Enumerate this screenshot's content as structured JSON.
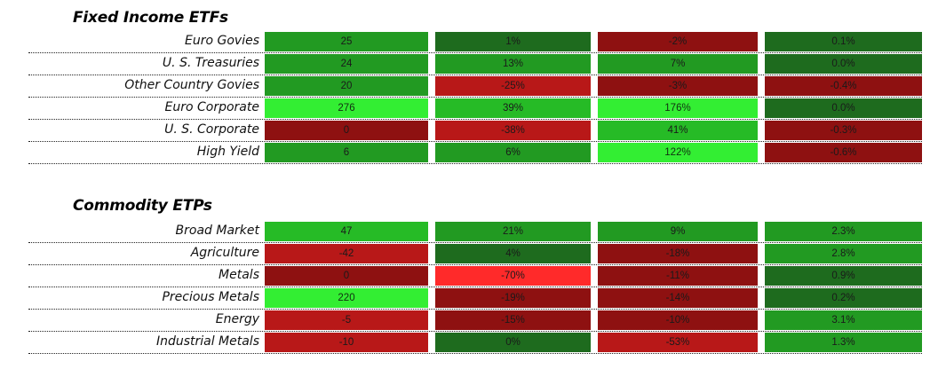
{
  "palette": {
    "dark_green": "#1e6b1e",
    "green": "#229a22",
    "mid_green": "#26bb26",
    "bright_green": "#33ee33",
    "dark_red": "#8e1111",
    "red": "#b81818",
    "bright_red": "#ff2a2a"
  },
  "sections": [
    {
      "title": "Fixed Income ETFs",
      "rows": [
        {
          "label": "Euro Govies",
          "cells": [
            {
              "value": "25",
              "color": "green"
            },
            {
              "value": "1%",
              "color": "dark_green"
            },
            {
              "value": "-2%",
              "color": "dark_red"
            },
            {
              "value": "0.1%",
              "color": "dark_green"
            }
          ]
        },
        {
          "label": "U. S. Treasuries",
          "cells": [
            {
              "value": "24",
              "color": "green"
            },
            {
              "value": "13%",
              "color": "green"
            },
            {
              "value": "7%",
              "color": "green"
            },
            {
              "value": "0.0%",
              "color": "dark_green"
            }
          ]
        },
        {
          "label": "Other Country Govies",
          "cells": [
            {
              "value": "20",
              "color": "green"
            },
            {
              "value": "-25%",
              "color": "red"
            },
            {
              "value": "-3%",
              "color": "dark_red"
            },
            {
              "value": "-0.4%",
              "color": "dark_red"
            }
          ]
        },
        {
          "label": "Euro Corporate",
          "cells": [
            {
              "value": "276",
              "color": "bright_green"
            },
            {
              "value": "39%",
              "color": "mid_green"
            },
            {
              "value": "176%",
              "color": "bright_green"
            },
            {
              "value": "0.0%",
              "color": "dark_green"
            }
          ]
        },
        {
          "label": "U. S. Corporate",
          "cells": [
            {
              "value": "0",
              "color": "dark_red"
            },
            {
              "value": "-38%",
              "color": "red"
            },
            {
              "value": "41%",
              "color": "mid_green"
            },
            {
              "value": "-0.3%",
              "color": "dark_red"
            }
          ]
        },
        {
          "label": "High Yield",
          "cells": [
            {
              "value": "6",
              "color": "green"
            },
            {
              "value": "6%",
              "color": "green"
            },
            {
              "value": "122%",
              "color": "bright_green"
            },
            {
              "value": "-0.6%",
              "color": "dark_red"
            }
          ]
        }
      ]
    },
    {
      "title": "Commodity ETPs",
      "rows": [
        {
          "label": "Broad Market",
          "cells": [
            {
              "value": "47",
              "color": "mid_green"
            },
            {
              "value": "21%",
              "color": "green"
            },
            {
              "value": "9%",
              "color": "green"
            },
            {
              "value": "2.3%",
              "color": "green"
            }
          ]
        },
        {
          "label": "Agriculture",
          "cells": [
            {
              "value": "-42",
              "color": "red"
            },
            {
              "value": "4%",
              "color": "dark_green"
            },
            {
              "value": "-18%",
              "color": "dark_red"
            },
            {
              "value": "2.8%",
              "color": "green"
            }
          ]
        },
        {
          "label": "Metals",
          "cells": [
            {
              "value": "0",
              "color": "dark_red"
            },
            {
              "value": "-70%",
              "color": "bright_red"
            },
            {
              "value": "-11%",
              "color": "dark_red"
            },
            {
              "value": "0.9%",
              "color": "dark_green"
            }
          ]
        },
        {
          "label": "Precious Metals",
          "cells": [
            {
              "value": "220",
              "color": "bright_green"
            },
            {
              "value": "-19%",
              "color": "dark_red"
            },
            {
              "value": "-14%",
              "color": "dark_red"
            },
            {
              "value": "0.2%",
              "color": "dark_green"
            }
          ]
        },
        {
          "label": "Energy",
          "cells": [
            {
              "value": "-5",
              "color": "red"
            },
            {
              "value": "-15%",
              "color": "dark_red"
            },
            {
              "value": "-10%",
              "color": "dark_red"
            },
            {
              "value": "3.1%",
              "color": "green"
            }
          ]
        },
        {
          "label": "Industrial Metals",
          "cells": [
            {
              "value": "-10",
              "color": "red"
            },
            {
              "value": "0%",
              "color": "dark_green"
            },
            {
              "value": "-53%",
              "color": "red"
            },
            {
              "value": "1.3%",
              "color": "green"
            }
          ]
        }
      ]
    }
  ]
}
